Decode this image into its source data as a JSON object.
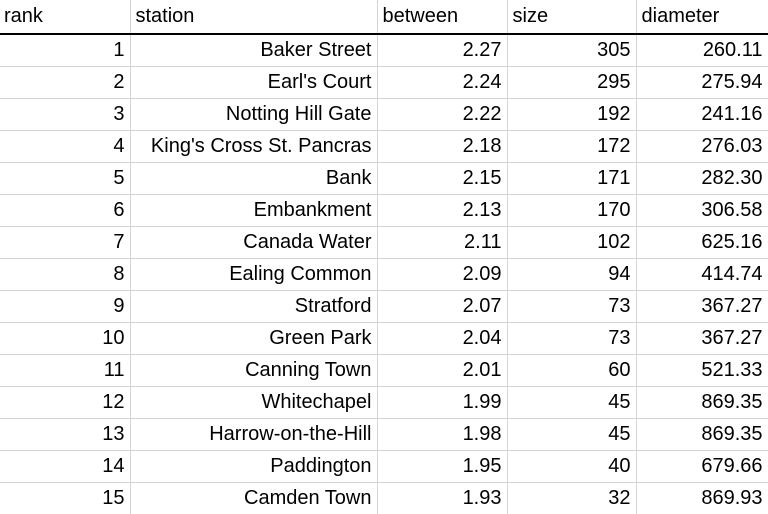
{
  "table": {
    "headers": [
      "rank",
      "station",
      "between",
      "size",
      "diameter"
    ],
    "rows": [
      [
        "1",
        "Baker Street",
        "2.27",
        "305",
        "260.11"
      ],
      [
        "2",
        "Earl's Court",
        "2.24",
        "295",
        "275.94"
      ],
      [
        "3",
        "Notting Hill Gate",
        "2.22",
        "192",
        "241.16"
      ],
      [
        "4",
        "King's Cross St. Pancras",
        "2.18",
        "172",
        "276.03"
      ],
      [
        "5",
        "Bank",
        "2.15",
        "171",
        "282.30"
      ],
      [
        "6",
        "Embankment",
        "2.13",
        "170",
        "306.58"
      ],
      [
        "7",
        "Canada Water",
        "2.11",
        "102",
        "625.16"
      ],
      [
        "8",
        "Ealing Common",
        "2.09",
        "94",
        "414.74"
      ],
      [
        "9",
        "Stratford",
        "2.07",
        "73",
        "367.27"
      ],
      [
        "10",
        "Green Park",
        "2.04",
        "73",
        "367.27"
      ],
      [
        "11",
        "Canning Town",
        "2.01",
        "60",
        "521.33"
      ],
      [
        "12",
        "Whitechapel",
        "1.99",
        "45",
        "869.35"
      ],
      [
        "13",
        "Harrow-on-the-Hill",
        "1.98",
        "45",
        "869.35"
      ],
      [
        "14",
        "Paddington",
        "1.95",
        "40",
        "679.66"
      ],
      [
        "15",
        "Camden Town",
        "1.93",
        "32",
        "869.93"
      ]
    ]
  }
}
